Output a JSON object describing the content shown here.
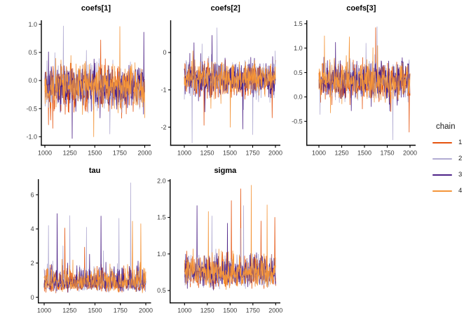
{
  "chart_data": {
    "type": "line",
    "kind": "mcmc-trace-plot",
    "figure_note": "Five faceted MCMC trace panels, 4 chains each, white background, black axes, no gridlines",
    "x": {
      "tick_labels": [
        "1000",
        "1250",
        "1500",
        "1750",
        "2000"
      ],
      "tick_values": [
        1000,
        1250,
        1500,
        1750,
        2000
      ],
      "range": [
        1000,
        2000
      ]
    },
    "legend": {
      "title": "chain",
      "position": "right",
      "entries": [
        {
          "label": "1",
          "color": "#E5530E"
        },
        {
          "label": "2",
          "color": "#B1ABD2"
        },
        {
          "label": "3",
          "color": "#4E2387"
        },
        {
          "label": "4",
          "color": "#F49539"
        }
      ]
    },
    "panels": [
      {
        "title": "coefs[1]",
        "y_ticks": [
          "1.0",
          "0.5",
          "0.0",
          "-0.5",
          "-1.0"
        ],
        "y_tick_values": [
          1.0,
          0.5,
          0.0,
          -0.5,
          -1.0
        ],
        "ylim": [
          -1.151,
          1.071
        ],
        "trace": {
          "center": -0.12,
          "spread": 0.55,
          "min": -1.05,
          "max": 0.97,
          "skew": "none",
          "spike_p": 0.07,
          "spike_k": 2.2
        },
        "spikes": [
          [
            2,
            1185,
            0.97
          ],
          [
            4,
            1750,
            0.96
          ],
          [
            3,
            1992,
            0.86
          ],
          [
            1,
            1560,
            0.72
          ],
          [
            3,
            1275,
            -1.03
          ],
          [
            4,
            1490,
            -1.0
          ],
          [
            2,
            1650,
            -0.95
          ],
          [
            1,
            1080,
            -0.85
          ]
        ]
      },
      {
        "title": "coefs[2]",
        "y_ticks": [
          "0",
          "-1",
          "-2"
        ],
        "y_tick_values": [
          0,
          -1,
          -2
        ],
        "ylim": [
          -2.484,
          0.862
        ],
        "trace": {
          "center": -0.7,
          "spread": 0.62,
          "min": -2.42,
          "max": 0.66,
          "skew": "none",
          "spike_p": 0.07,
          "spike_k": 2.5
        },
        "spikes": [
          [
            2,
            1085,
            -2.42
          ],
          [
            2,
            1360,
            0.66
          ],
          [
            3,
            1640,
            -2.05
          ],
          [
            1,
            1215,
            -1.95
          ],
          [
            4,
            1505,
            -2.0
          ],
          [
            2,
            1750,
            -2.2
          ],
          [
            1,
            1965,
            -1.75
          ]
        ]
      },
      {
        "title": "coefs[3]",
        "y_ticks": [
          "1.5",
          "1.0",
          "0.5",
          "0.0",
          "-0.5"
        ],
        "y_tick_values": [
          1.5,
          1.0,
          0.5,
          0.0,
          -0.5
        ],
        "ylim": [
          -0.99,
          1.57
        ],
        "trace": {
          "center": 0.33,
          "spread": 0.55,
          "min": -0.88,
          "max": 1.44,
          "skew": "none",
          "spike_p": 0.07,
          "spike_k": 2.3
        },
        "spikes": [
          [
            1,
            1622,
            1.42
          ],
          [
            2,
            1638,
            1.44
          ],
          [
            4,
            1060,
            1.25
          ],
          [
            2,
            1812,
            -0.88
          ],
          [
            1,
            1990,
            -0.72
          ],
          [
            4,
            1335,
            1.23
          ],
          [
            2,
            1518,
            1.1
          ]
        ]
      },
      {
        "title": "tau",
        "y_ticks": [
          "6",
          "4",
          "2",
          "0"
        ],
        "y_tick_values": [
          6,
          4,
          2,
          0
        ],
        "ylim": [
          -0.33,
          6.91
        ],
        "trace": {
          "center": 0.95,
          "log_spread": 1.0,
          "offset": -0.12,
          "min": 0.04,
          "max": 6.72,
          "skew": "right",
          "spike_p": 0.05,
          "spike_k": 1.9
        },
        "spikes": [
          [
            2,
            1852,
            6.7
          ],
          [
            3,
            1128,
            4.9
          ],
          [
            2,
            1252,
            4.78
          ],
          [
            3,
            1558,
            4.75
          ],
          [
            2,
            1735,
            4.62
          ],
          [
            2,
            1415,
            4.1
          ],
          [
            4,
            1950,
            4.3
          ],
          [
            2,
            1042,
            4.2
          ],
          [
            1,
            1205,
            4.05
          ],
          [
            4,
            1870,
            4.45
          ]
        ]
      },
      {
        "title": "sigma",
        "y_ticks": [
          "2.0",
          "1.5",
          "1.0",
          "0.5"
        ],
        "y_tick_values": [
          2.0,
          1.5,
          1.0,
          0.5
        ],
        "ylim": [
          0.331,
          2.022
        ],
        "trace": {
          "center": 0.74,
          "log_spread": 0.42,
          "offset": 0,
          "min": 0.42,
          "max": 1.94,
          "skew": "right",
          "spike_p": 0.05,
          "spike_k": 2.3
        },
        "spikes": [
          [
            1,
            1618,
            1.89
          ],
          [
            4,
            1732,
            1.94
          ],
          [
            3,
            1138,
            1.66
          ],
          [
            2,
            1648,
            1.66
          ],
          [
            4,
            1905,
            1.67
          ],
          [
            1,
            1990,
            1.5
          ],
          [
            4,
            1262,
            1.58
          ],
          [
            2,
            1302,
            1.52
          ],
          [
            3,
            1470,
            1.42
          ],
          [
            1,
            1840,
            1.45
          ]
        ]
      }
    ],
    "style": {
      "axis_color": "#000000",
      "tick_label_color": "#3d3d3d",
      "title_color": "#000000",
      "background": "#ffffff"
    }
  }
}
